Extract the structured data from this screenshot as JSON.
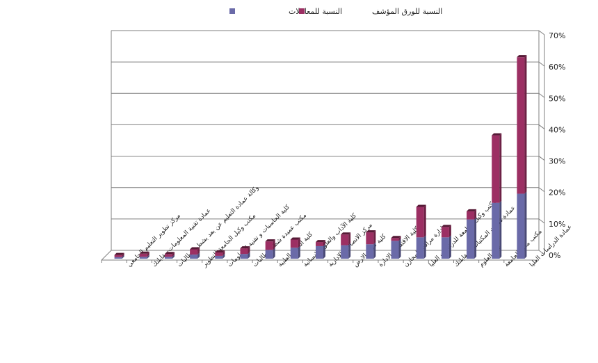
{
  "chart_data": {
    "type": "bar",
    "stacked": true,
    "view": "3d-stacked-columns",
    "title": "",
    "xlabel": "",
    "ylabel": "",
    "ylim": [
      0,
      70
    ],
    "y_ticks": [
      "0%",
      "10%",
      "20%",
      "30%",
      "40%",
      "50%",
      "60%",
      "70%"
    ],
    "y_axis_side": "right",
    "grid": true,
    "legend_position": "top",
    "categories": [
      "مركز تطوير التعليم الجامعي",
      "عمادة تقنية المعلومات-مقابلتك",
      "وكالة عمادة التعليم عن بعد بشطر الطالبات",
      "مكتب وكيل الجامعة للتطوير",
      "كلية الحاسبات و تقنية المعلومات",
      "مكتب عميدة شطر الطالبات",
      "كلية العلوم الطبية",
      "كلية الآداب والعلوم الانسانية",
      "مركز الاتصالات الادارية",
      "كلية علوم الارض",
      "كلية الاقتصاد والادارة",
      "ادارة مراقبة المخازن",
      "مكتب وكيل الجامعة للدراسات العليا",
      "عمادة شؤون المكتبات - مقابلتك",
      "كلية العلوم",
      "مكتب مدير الجامعة",
      "عمادة الدراسات العليا"
    ],
    "series": [
      {
        "name": "النسبة للمعاملات",
        "color": "#6a6aa8",
        "values": [
          0.5,
          0.6,
          0.6,
          1.3,
          0.9,
          1.5,
          2.8,
          3.5,
          4.0,
          4.3,
          4.6,
          5.7,
          6.8,
          6.8,
          12.5,
          17.8,
          20.7
        ]
      },
      {
        "name": "النسبة للورق المؤشف",
        "color": "#9c2f63",
        "values": [
          0.7,
          1.0,
          0.9,
          1.7,
          1.1,
          1.8,
          2.7,
          2.6,
          1.3,
          3.4,
          3.8,
          0.9,
          9.7,
          3.3,
          2.6,
          21.5,
          43.5
        ]
      }
    ]
  }
}
